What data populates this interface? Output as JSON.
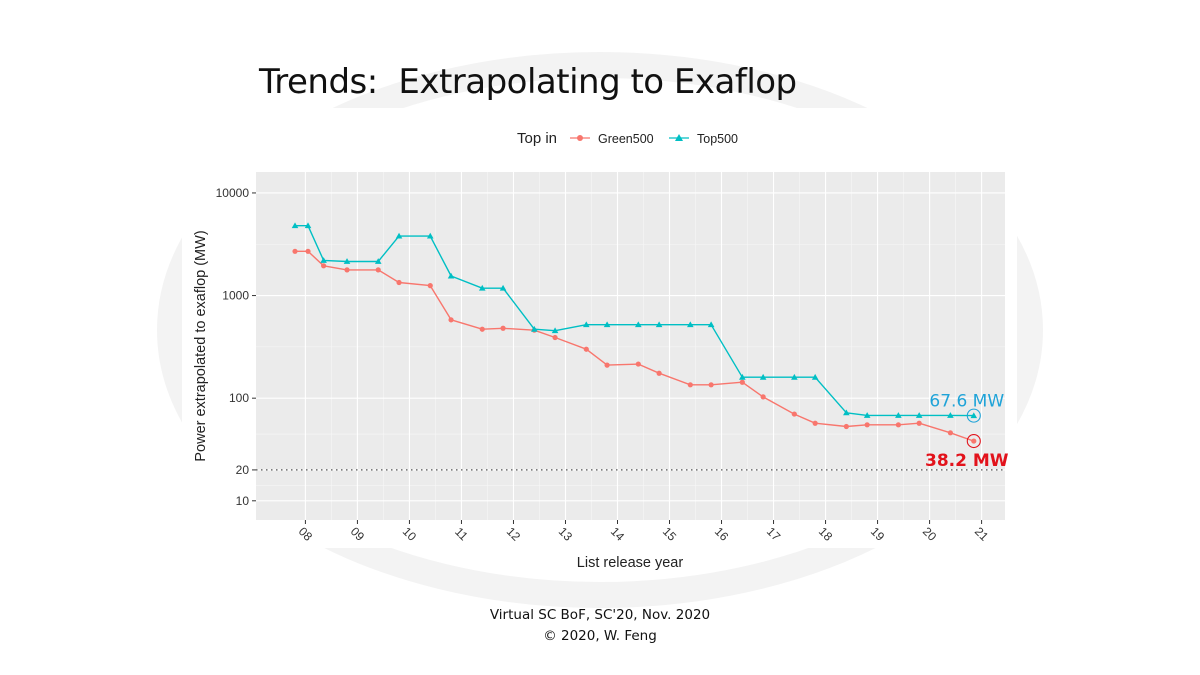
{
  "slide": {
    "title": "Trends:  Extrapolating to Exaflop",
    "footer_line1": "Virtual SC BoF, SC'20, Nov. 2020",
    "footer_line2": "© 2020, W. Feng"
  },
  "colors": {
    "green500": "#f8766d",
    "top500": "#00bfc4",
    "panel": "#ebebeb",
    "annotation_top": "#1fa3d8",
    "annotation_green": "#e2121b"
  },
  "chart_data": {
    "type": "line",
    "y_scale": "log10",
    "xlabel": "List release year",
    "ylabel": "Power extrapolated to exaflop (MW)",
    "legend_title": "Top in",
    "legend_position": "top",
    "x_tick_labels": [
      "08",
      "09",
      "10",
      "11",
      "12",
      "13",
      "14",
      "15",
      "16",
      "17",
      "18",
      "19",
      "20",
      "21"
    ],
    "x_ticks": [
      8,
      9,
      10,
      11,
      12,
      13,
      14,
      15,
      16,
      17,
      18,
      19,
      20,
      21
    ],
    "y_tick_labels": [
      "10000",
      "1000",
      "100",
      "20",
      "10"
    ],
    "y_ticks": [
      10000,
      1000,
      100,
      20,
      10
    ],
    "xlim": [
      7.05,
      21.45
    ],
    "ylim": [
      6.5,
      16000
    ],
    "reference_line": {
      "y": 20,
      "style": "dotted"
    },
    "series": [
      {
        "name": "Green500",
        "marker": "circle",
        "points": [
          [
            7.8,
            2700
          ],
          [
            8.05,
            2700
          ],
          [
            8.35,
            1950
          ],
          [
            8.8,
            1780
          ],
          [
            9.4,
            1780
          ],
          [
            9.8,
            1340
          ],
          [
            10.4,
            1250
          ],
          [
            10.8,
            580
          ],
          [
            11.4,
            470
          ],
          [
            11.8,
            480
          ],
          [
            12.4,
            460
          ],
          [
            12.8,
            390
          ],
          [
            13.4,
            300
          ],
          [
            13.8,
            210
          ],
          [
            14.4,
            215
          ],
          [
            14.8,
            175
          ],
          [
            15.4,
            135
          ],
          [
            15.8,
            135
          ],
          [
            16.4,
            143
          ],
          [
            16.8,
            103
          ],
          [
            17.4,
            70
          ],
          [
            17.8,
            57
          ],
          [
            18.4,
            53
          ],
          [
            18.8,
            55
          ],
          [
            19.4,
            55
          ],
          [
            19.8,
            57
          ],
          [
            20.4,
            46
          ],
          [
            20.85,
            38.2
          ]
        ]
      },
      {
        "name": "Top500",
        "marker": "triangle",
        "points": [
          [
            7.8,
            4800
          ],
          [
            8.05,
            4800
          ],
          [
            8.35,
            2200
          ],
          [
            8.8,
            2150
          ],
          [
            9.4,
            2150
          ],
          [
            9.8,
            3800
          ],
          [
            10.4,
            3800
          ],
          [
            10.8,
            1550
          ],
          [
            11.4,
            1180
          ],
          [
            11.8,
            1180
          ],
          [
            12.4,
            470
          ],
          [
            12.8,
            455
          ],
          [
            13.4,
            520
          ],
          [
            13.8,
            520
          ],
          [
            14.4,
            520
          ],
          [
            14.8,
            520
          ],
          [
            15.4,
            520
          ],
          [
            15.8,
            520
          ],
          [
            16.4,
            160
          ],
          [
            16.8,
            160
          ],
          [
            17.4,
            160
          ],
          [
            17.8,
            160
          ],
          [
            18.4,
            72
          ],
          [
            18.8,
            68
          ],
          [
            19.4,
            68
          ],
          [
            19.8,
            68
          ],
          [
            20.4,
            68
          ],
          [
            20.85,
            67.6
          ]
        ]
      }
    ],
    "annotations": [
      {
        "series": "Top500",
        "label": "67.6 MW",
        "x": 20.85,
        "y": 67.6
      },
      {
        "series": "Green500",
        "label": "38.2 MW",
        "x": 20.85,
        "y": 38.2
      }
    ]
  }
}
